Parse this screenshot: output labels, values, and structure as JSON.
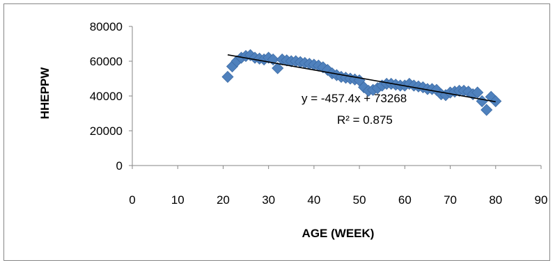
{
  "chart_data": {
    "type": "scatter",
    "title": "",
    "xlabel": "AGE (WEEK)",
    "ylabel": "HHEPPW",
    "xlim": [
      0,
      90
    ],
    "ylim": [
      0,
      80000
    ],
    "xticks": [
      0,
      10,
      20,
      30,
      40,
      50,
      60,
      70,
      80,
      90
    ],
    "yticks": [
      0,
      20000,
      40000,
      60000,
      80000
    ],
    "grid": false,
    "legend": "none",
    "marker": "diamond",
    "marker_color": "#4F81BD",
    "series": [
      {
        "x": [
          21,
          22,
          23,
          24,
          25,
          26,
          27,
          28,
          29,
          30,
          31,
          32,
          33,
          34,
          35,
          36,
          37,
          38,
          39,
          40,
          41,
          42,
          43,
          44,
          45,
          46,
          47,
          48,
          49,
          50,
          51,
          52,
          53,
          54,
          55,
          56,
          57,
          58,
          59,
          60,
          61,
          62,
          63,
          64,
          65,
          66,
          67,
          68,
          69,
          70,
          71,
          72,
          73,
          74,
          75,
          76,
          77,
          78,
          79,
          80
        ],
        "y": [
          51000,
          57000,
          60000,
          62000,
          63000,
          63500,
          62000,
          61500,
          61000,
          62000,
          61000,
          56000,
          61000,
          60500,
          60000,
          60000,
          59500,
          59000,
          58500,
          58000,
          57500,
          56500,
          55000,
          53000,
          52000,
          51000,
          50500,
          50000,
          49500,
          49000,
          45000,
          43000,
          43500,
          44500,
          46000,
          47000,
          47000,
          46500,
          46000,
          46000,
          47000,
          46000,
          45500,
          45000,
          44000,
          44000,
          43500,
          41000,
          40500,
          42000,
          42500,
          43000,
          43000,
          42500,
          41000,
          42000,
          37000,
          32000,
          39500,
          37000
        ]
      }
    ],
    "trendline": {
      "type": "linear",
      "slope": -457.4,
      "intercept": 73268,
      "x_range": [
        21,
        80
      ],
      "color": "#000000"
    },
    "annotations": {
      "equation": "y = -457.4x + 73268",
      "r_squared": "R² = 0.875"
    }
  }
}
